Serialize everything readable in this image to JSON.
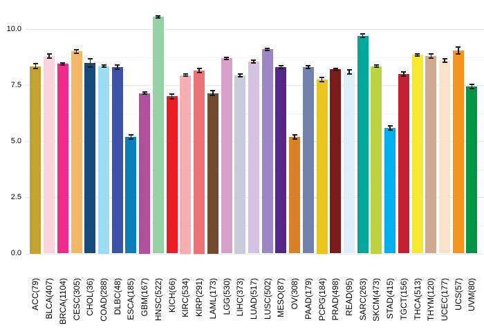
{
  "chart_data": {
    "type": "bar",
    "title": "",
    "xlabel": "",
    "ylabel": "",
    "legend": "none",
    "grid": "horizontal, major and minor, light gray on white panel",
    "ylim": [
      0,
      11.1
    ],
    "yticks": [
      0.0,
      2.5,
      5.0,
      7.5,
      10.0
    ],
    "ytick_labels": [
      "0.0",
      "2.5",
      "5.0",
      "7.5",
      "10.0"
    ],
    "minor_gridlines": [
      1.25,
      3.75,
      6.25,
      8.75
    ],
    "x_label_rotation": "vertical (reads bottom-to-top)",
    "error_bars": "black symmetric whiskers with caps",
    "categories": [
      "ACC(79)",
      "BLCA(407)",
      "BRCA(1104)",
      "CESC(305)",
      "CHOL(36)",
      "COAD(288)",
      "DLBC(48)",
      "ESCA(185)",
      "GBM(167)",
      "HNSC(522)",
      "KICH(66)",
      "KIRC(534)",
      "KIRP(291)",
      "LAML(173)",
      "LGG(530)",
      "LIHC(373)",
      "LUAD(517)",
      "LUSC(502)",
      "MESO(87)",
      "OV(308)",
      "PAAD(179)",
      "PCPG(184)",
      "PRAD(498)",
      "READ(95)",
      "SARC(263)",
      "SKCM(473)",
      "STAD(415)",
      "TGCT(156)",
      "THCA(513)",
      "THYM(120)",
      "UCEC(177)",
      "UCS(57)",
      "UVM(80)"
    ],
    "values": [
      8.35,
      8.8,
      8.45,
      9.0,
      8.5,
      8.35,
      8.3,
      5.2,
      7.15,
      10.55,
      7.0,
      7.95,
      8.15,
      7.15,
      8.7,
      7.95,
      8.55,
      9.1,
      8.3,
      5.2,
      8.3,
      7.75,
      8.2,
      8.1,
      9.7,
      8.35,
      5.6,
      8.0,
      8.85,
      8.8,
      8.6,
      9.05,
      7.45
    ],
    "errors": [
      0.12,
      0.09,
      0.05,
      0.08,
      0.18,
      0.05,
      0.09,
      0.09,
      0.06,
      0.05,
      0.12,
      0.05,
      0.09,
      0.11,
      0.05,
      0.06,
      0.05,
      0.05,
      0.06,
      0.09,
      0.06,
      0.09,
      0.05,
      0.09,
      0.08,
      0.05,
      0.09,
      0.08,
      0.05,
      0.09,
      0.09,
      0.15,
      0.09
    ],
    "colors": [
      "#c2a332",
      "#fad3dd",
      "#ee2c8b",
      "#f4b766",
      "#17497d",
      "#9edcf6",
      "#3a53a4",
      "#0680b7",
      "#b1519e",
      "#97d1a7",
      "#ec1c24",
      "#f8aeb2",
      "#ea7176",
      "#744a2c",
      "#d5a0c9",
      "#c9cbdd",
      "#d3c2e2",
      "#9c86c5",
      "#532786",
      "#d88128",
      "#7282ac",
      "#e8c51f",
      "#7c1b1a",
      "#ddeef8",
      "#00a79b",
      "#bcd242",
      "#01aeef",
      "#c22031",
      "#f5ea31",
      "#cfaa8e",
      "#fae3c9",
      "#f7941e",
      "#019444"
    ],
    "error_bar_color": "#1a1a1a",
    "major_gridline_color": "#e8e8e8",
    "minor_gridline_color": "#f3f3f3",
    "background_color": "#ffffff"
  }
}
